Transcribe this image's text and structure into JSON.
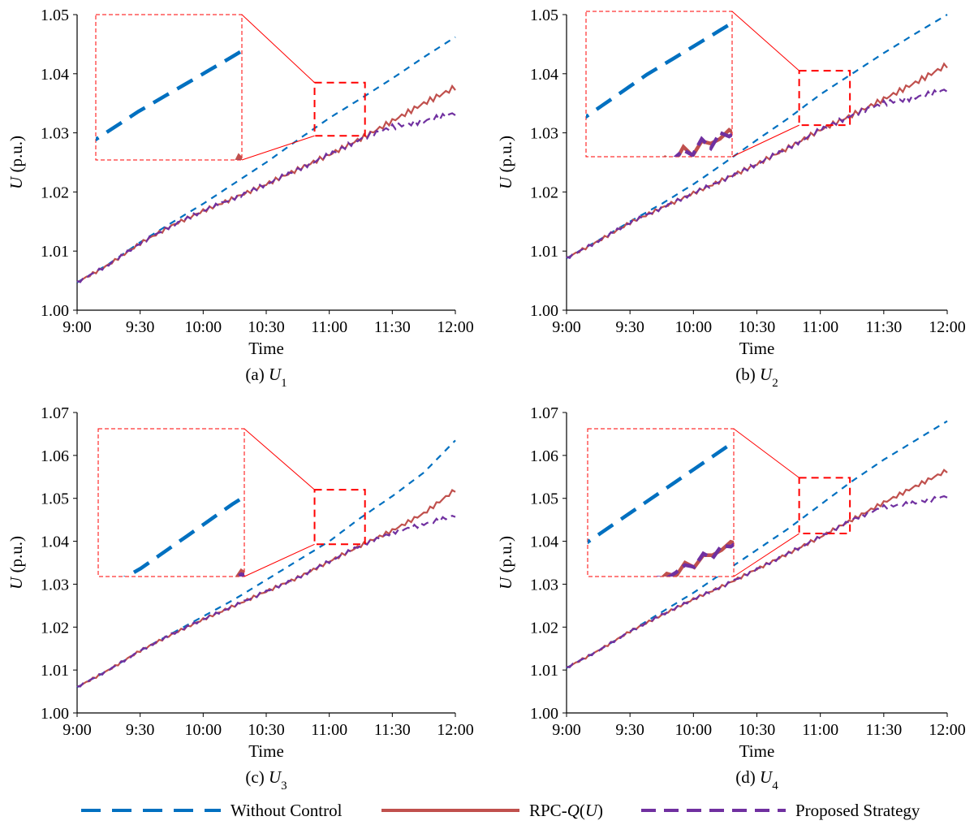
{
  "colors": {
    "without_control": "#0070C0",
    "rpc_q": "#C0504D",
    "proposed": "#7030A0",
    "zoom_box": "#FF0000",
    "axis": "#000000"
  },
  "legend": {
    "items": [
      {
        "key": "without_control",
        "label": "Without Control",
        "style": "dashed"
      },
      {
        "key": "rpc_q",
        "label": "RPC-Q(U)",
        "style": "solid"
      },
      {
        "key": "proposed",
        "label": "Proposed Strategy",
        "style": "dashed"
      }
    ]
  },
  "chart_data": [
    {
      "type": "line",
      "caption": {
        "prefix": "(a) ",
        "var": "U",
        "sub": "1"
      },
      "xlabel": "Time",
      "ylabel": {
        "var": "U",
        "unit": " (p.u.)"
      },
      "x_ticks": [
        "9:00",
        "9:30",
        "10:00",
        "10:30",
        "11:00",
        "11:30",
        "12:00"
      ],
      "xlim": [
        0,
        180
      ],
      "ylim": [
        1.0,
        1.05
      ],
      "y_ticks": [
        "1.00",
        "1.01",
        "1.02",
        "1.03",
        "1.04",
        "1.05"
      ],
      "x_minutes": [
        0,
        15,
        30,
        45,
        60,
        75,
        90,
        105,
        120,
        135,
        150,
        165,
        180
      ],
      "series": [
        {
          "name": "Without Control",
          "values": [
            1.0047,
            1.0078,
            1.0115,
            1.0148,
            1.018,
            1.0215,
            1.025,
            1.0288,
            1.0325,
            1.0358,
            1.0392,
            1.0428,
            1.0462
          ]
        },
        {
          "name": "RPC-Q(U)",
          "values": [
            1.0047,
            1.0077,
            1.0113,
            1.0143,
            1.0168,
            1.019,
            1.0213,
            1.0238,
            1.0263,
            1.029,
            1.032,
            1.035,
            1.0377
          ]
        },
        {
          "name": "Proposed Strategy",
          "values": [
            1.0047,
            1.0077,
            1.0113,
            1.0143,
            1.0168,
            1.019,
            1.0213,
            1.0238,
            1.0263,
            1.029,
            1.031,
            1.032,
            1.0333
          ]
        }
      ],
      "zoom_window": {
        "x": [
          113,
          137
        ],
        "y": [
          1.0295,
          1.0385
        ]
      }
    },
    {
      "type": "line",
      "caption": {
        "prefix": "(b) ",
        "var": "U",
        "sub": "2"
      },
      "xlabel": "Time",
      "ylabel": {
        "var": "U",
        "unit": " (p.u.)"
      },
      "x_ticks": [
        "9:00",
        "9:30",
        "10:00",
        "10:30",
        "11:00",
        "11:30",
        "12:00"
      ],
      "xlim": [
        0,
        180
      ],
      "ylim": [
        1.0,
        1.05
      ],
      "y_ticks": [
        "1.00",
        "1.01",
        "1.02",
        "1.03",
        "1.04",
        "1.05"
      ],
      "x_minutes": [
        0,
        15,
        30,
        45,
        60,
        75,
        90,
        105,
        120,
        135,
        150,
        165,
        180
      ],
      "series": [
        {
          "name": "Without Control",
          "values": [
            1.0088,
            1.0118,
            1.015,
            1.018,
            1.0213,
            1.025,
            1.0288,
            1.0325,
            1.0365,
            1.04,
            1.0435,
            1.0468,
            1.05
          ]
        },
        {
          "name": "RPC-Q(U)",
          "values": [
            1.0088,
            1.0117,
            1.0148,
            1.0173,
            1.0198,
            1.0222,
            1.0247,
            1.0275,
            1.0305,
            1.033,
            1.0357,
            1.0385,
            1.0415
          ]
        },
        {
          "name": "Proposed Strategy",
          "values": [
            1.0088,
            1.0117,
            1.0148,
            1.0173,
            1.0198,
            1.0222,
            1.0247,
            1.0275,
            1.0305,
            1.033,
            1.035,
            1.036,
            1.0373
          ]
        }
      ],
      "zoom_window": {
        "x": [
          110,
          134
        ],
        "y": [
          1.0313,
          1.0405
        ]
      }
    },
    {
      "type": "line",
      "caption": {
        "prefix": "(c) ",
        "var": "U",
        "sub": "3"
      },
      "xlabel": "Time",
      "ylabel": {
        "var": "U",
        "unit": " (p.u.)"
      },
      "x_ticks": [
        "9:00",
        "9:30",
        "10:00",
        "10:30",
        "11:00",
        "11:30",
        "12:00"
      ],
      "xlim": [
        0,
        180
      ],
      "ylim": [
        1.0,
        1.07
      ],
      "y_ticks": [
        "1.00",
        "1.01",
        "1.02",
        "1.03",
        "1.04",
        "1.05",
        "1.06",
        "1.07"
      ],
      "x_minutes": [
        0,
        15,
        30,
        45,
        60,
        75,
        90,
        105,
        120,
        135,
        150,
        165,
        180
      ],
      "series": [
        {
          "name": "Without Control",
          "values": [
            1.006,
            1.01,
            1.0145,
            1.0185,
            1.0225,
            1.0265,
            1.031,
            1.0355,
            1.04,
            1.0455,
            1.0505,
            1.056,
            1.0635
          ]
        },
        {
          "name": "RPC-Q(U)",
          "values": [
            1.006,
            1.01,
            1.0145,
            1.0183,
            1.0218,
            1.025,
            1.0283,
            1.0315,
            1.0353,
            1.039,
            1.0425,
            1.0465,
            1.052
          ]
        },
        {
          "name": "Proposed Strategy",
          "values": [
            1.006,
            1.01,
            1.0145,
            1.0183,
            1.0218,
            1.025,
            1.0283,
            1.0315,
            1.0353,
            1.039,
            1.042,
            1.044,
            1.046
          ]
        }
      ],
      "zoom_window": {
        "x": [
          113,
          137
        ],
        "y": [
          1.0393,
          1.052
        ]
      }
    },
    {
      "type": "line",
      "caption": {
        "prefix": "(d) ",
        "var": "U",
        "sub": "4"
      },
      "xlabel": "Time",
      "ylabel": {
        "var": "U",
        "unit": " (p.u.)"
      },
      "x_ticks": [
        "9:00",
        "9:30",
        "10:00",
        "10:30",
        "11:00",
        "11:30",
        "12:00"
      ],
      "xlim": [
        0,
        180
      ],
      "ylim": [
        1.0,
        1.07
      ],
      "y_ticks": [
        "1.00",
        "1.01",
        "1.02",
        "1.03",
        "1.04",
        "1.05",
        "1.06",
        "1.07"
      ],
      "x_minutes": [
        0,
        15,
        30,
        45,
        60,
        75,
        90,
        105,
        120,
        135,
        150,
        165,
        180
      ],
      "series": [
        {
          "name": "Without Control",
          "values": [
            1.0105,
            1.0145,
            1.019,
            1.0235,
            1.028,
            1.033,
            1.038,
            1.043,
            1.0485,
            1.054,
            1.059,
            1.0635,
            1.068
          ]
        },
        {
          "name": "RPC-Q(U)",
          "values": [
            1.0105,
            1.0145,
            1.019,
            1.0228,
            1.0265,
            1.0298,
            1.0335,
            1.0372,
            1.041,
            1.045,
            1.049,
            1.0528,
            1.0565
          ]
        },
        {
          "name": "Proposed Strategy",
          "values": [
            1.0105,
            1.0145,
            1.019,
            1.0228,
            1.0265,
            1.0298,
            1.0335,
            1.0372,
            1.041,
            1.045,
            1.048,
            1.049,
            1.0505
          ]
        }
      ],
      "zoom_window": {
        "x": [
          110,
          134
        ],
        "y": [
          1.0418,
          1.0548
        ]
      }
    }
  ]
}
